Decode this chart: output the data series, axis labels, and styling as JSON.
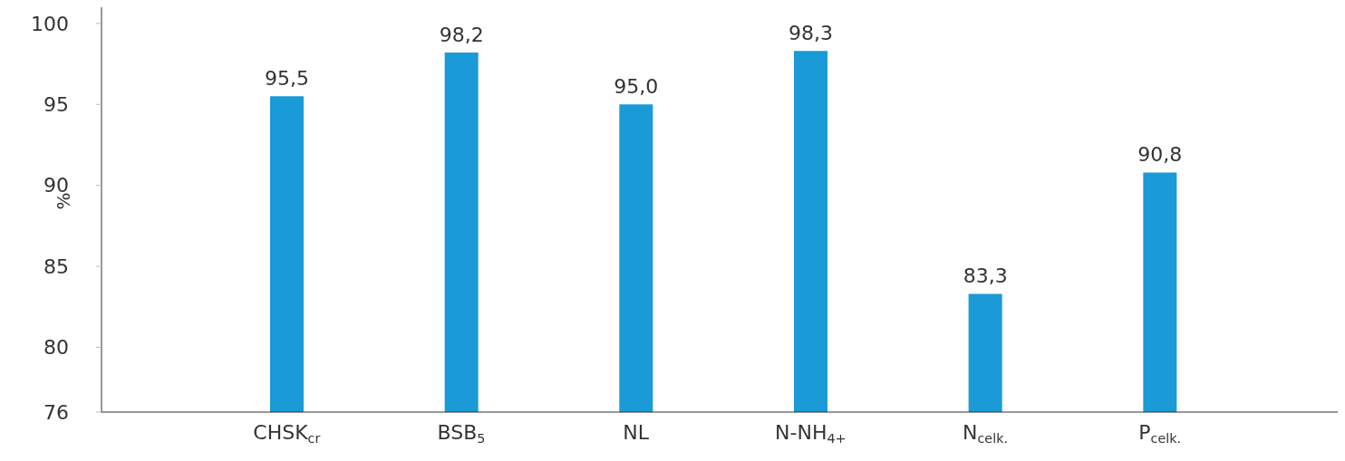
{
  "chart_data": {
    "type": "bar",
    "ylabel": "%",
    "categories": [
      "CHSK$_{cr}$",
      "BSB$_{5}$",
      "NL",
      "N-NH$_{4+}$",
      "N$_{celk.}$",
      "P$_{celk.}$"
    ],
    "values": [
      95.5,
      98.2,
      95.0,
      98.3,
      83.3,
      90.8
    ],
    "value_labels": [
      "95,5",
      "98,2",
      "95,0",
      "98,3",
      "83,3",
      "90,8"
    ],
    "color": "#1a9ad6",
    "ylim": [
      76,
      101
    ],
    "yticks": [
      76,
      80,
      85,
      90,
      95,
      100
    ],
    "grid": false,
    "legend": false
  }
}
